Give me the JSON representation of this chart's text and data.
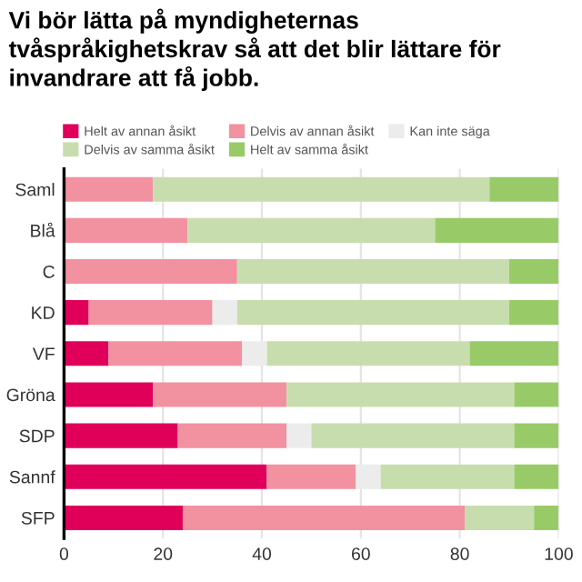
{
  "chart_data": {
    "type": "bar",
    "orientation": "horizontal",
    "stacked": true,
    "title": "Vi bör lätta på myndigheternas tvåspråkighetskrav så att det blir lättare för invandrare att få jobb.",
    "categories": [
      "Saml",
      "Blå",
      "C",
      "KD",
      "VF",
      "Gröna",
      "SDP",
      "Sannf",
      "SFP"
    ],
    "series": [
      {
        "name": "Helt av annan åsikt",
        "color": "#e0005a",
        "values": [
          0,
          0,
          0,
          5,
          9,
          18,
          23,
          41,
          24
        ]
      },
      {
        "name": "Delvis av annan åsikt",
        "color": "#f291a0",
        "values": [
          18,
          25,
          35,
          25,
          27,
          27,
          22,
          18,
          57
        ]
      },
      {
        "name": "Kan inte säga",
        "color": "#ececec",
        "values": [
          0,
          0,
          0,
          5,
          5,
          0,
          5,
          5,
          0
        ]
      },
      {
        "name": "Delvis av samma åsikt",
        "color": "#c8ddae",
        "values": [
          68,
          50,
          55,
          55,
          41,
          46,
          41,
          27,
          14
        ]
      },
      {
        "name": "Helt av samma åsikt",
        "color": "#98cb68",
        "values": [
          14,
          25,
          10,
          10,
          18,
          9,
          9,
          9,
          5
        ]
      }
    ],
    "xlim": [
      0,
      100
    ],
    "xticks": [
      0,
      20,
      40,
      60,
      80,
      100
    ],
    "grid": "x",
    "legend": "top"
  }
}
